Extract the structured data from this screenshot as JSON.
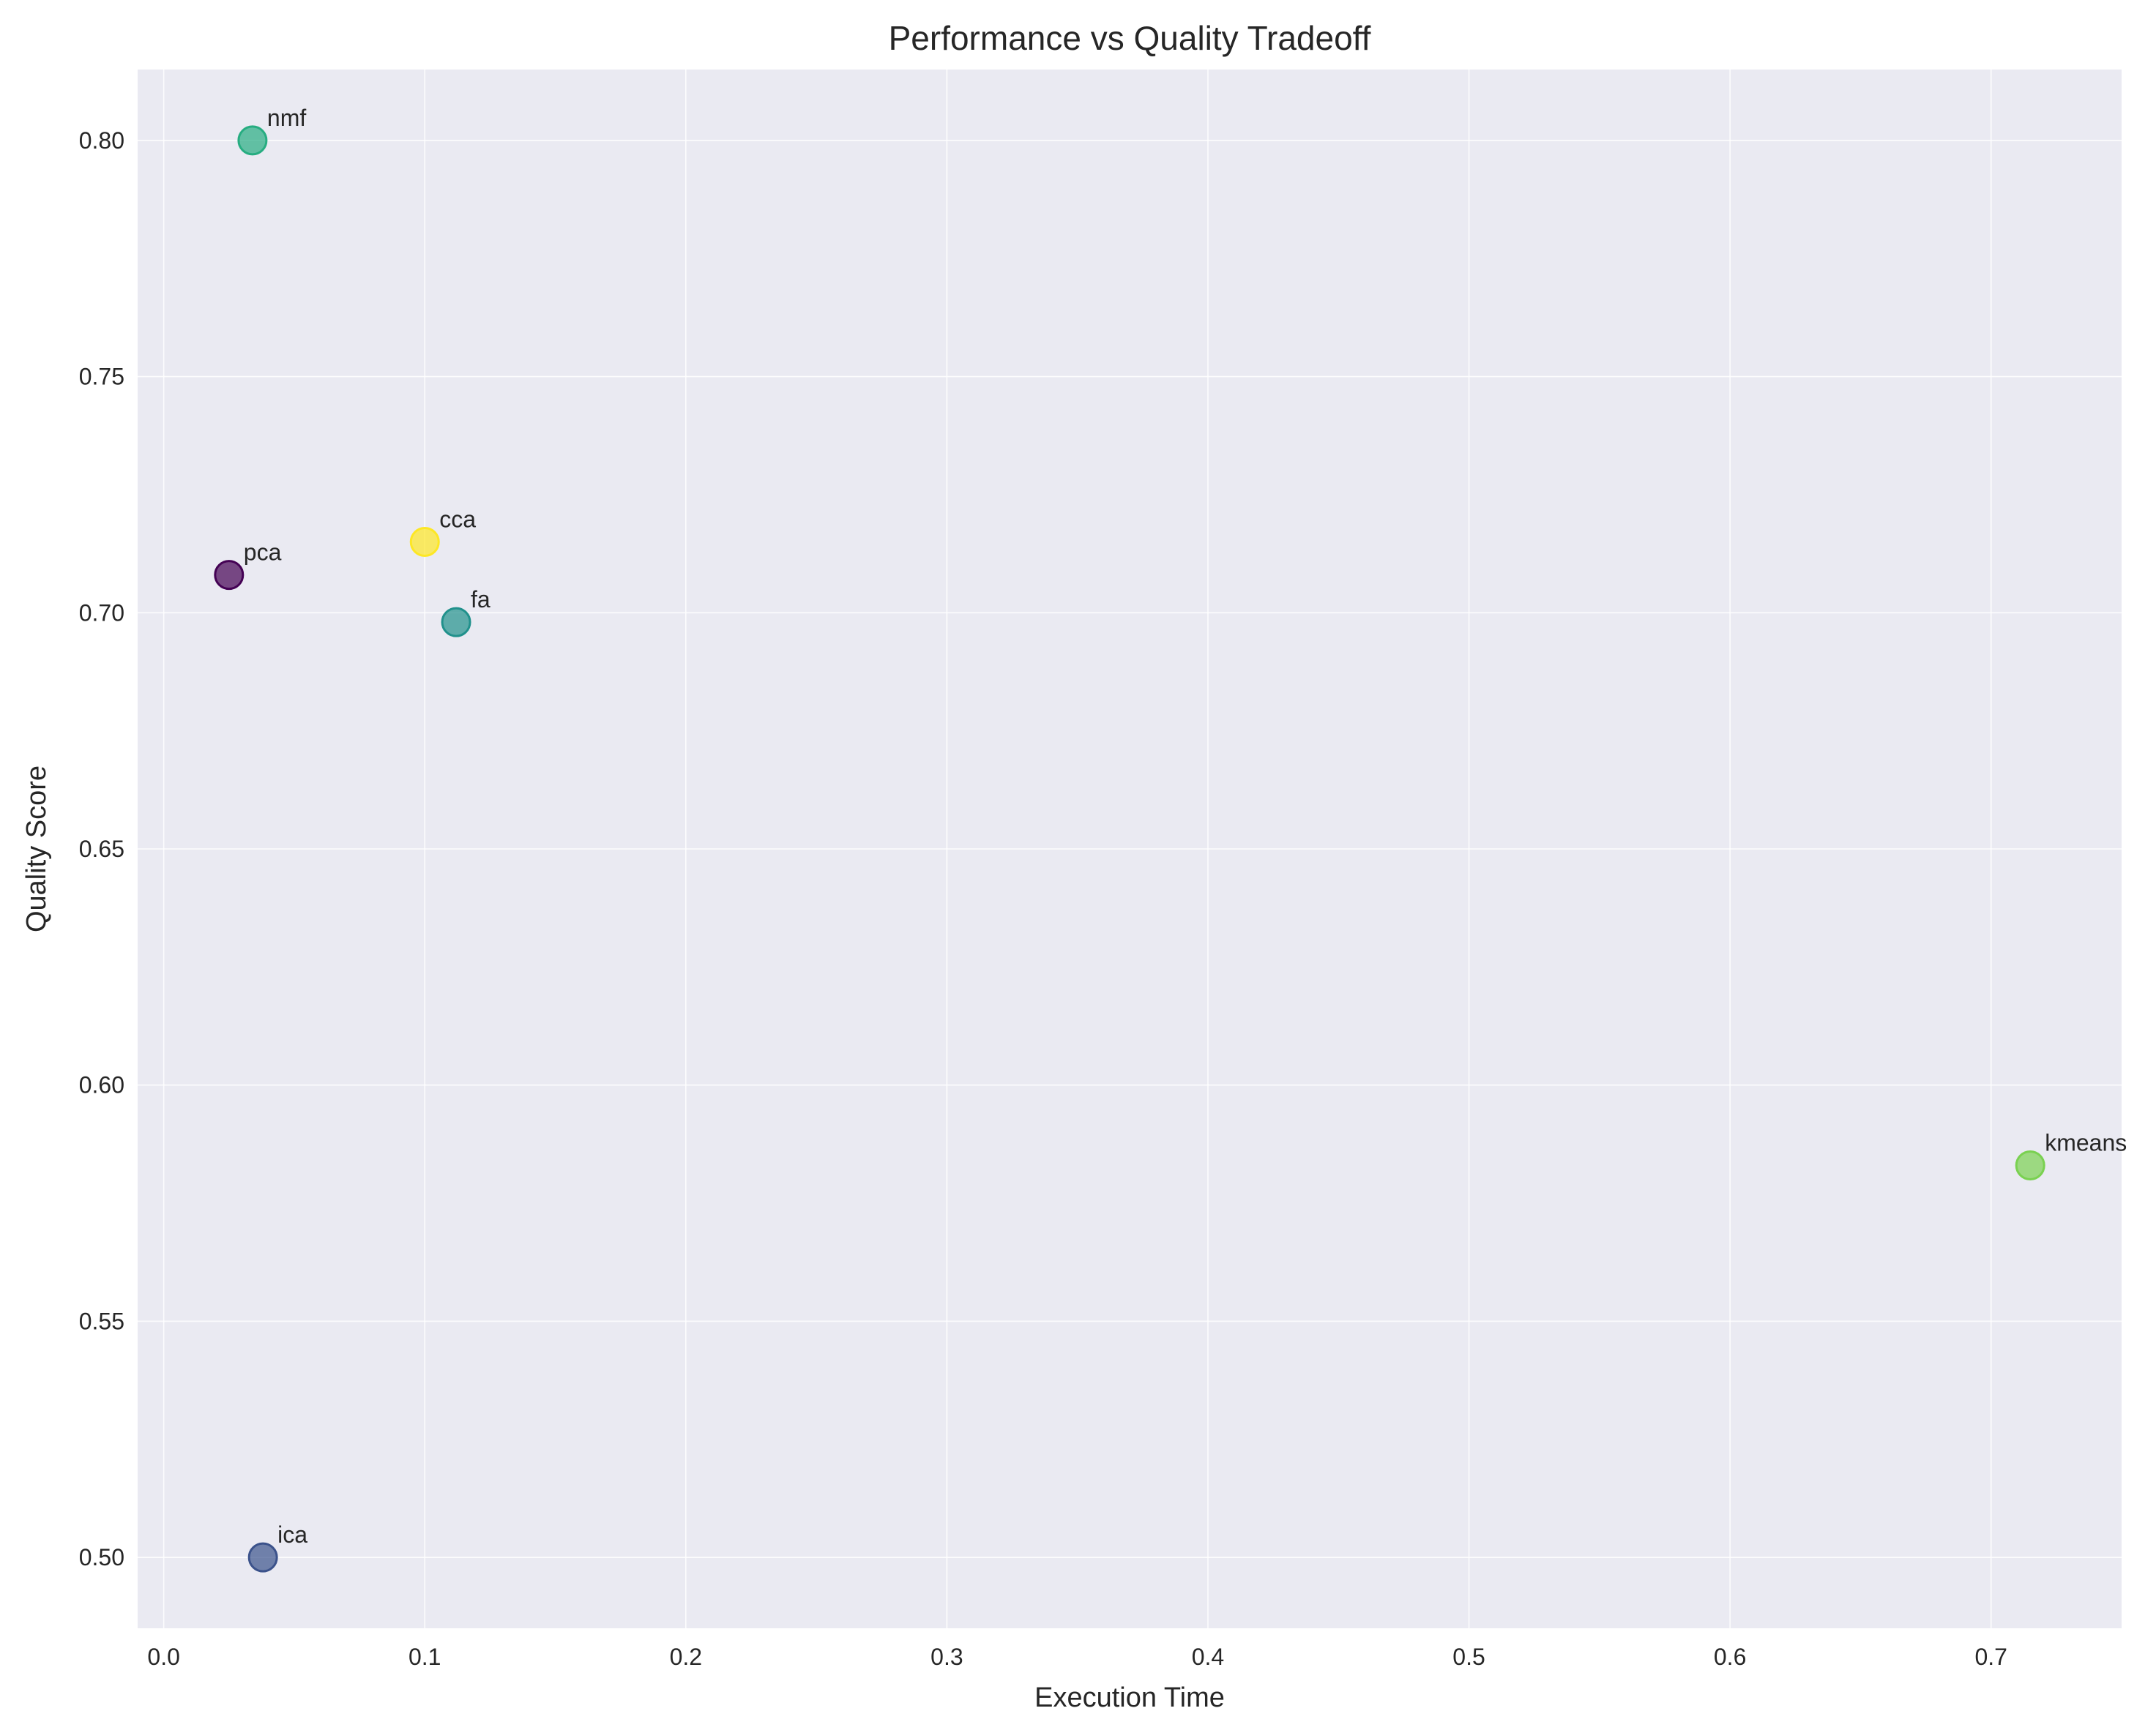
{
  "chart_data": {
    "type": "scatter",
    "title": "Performance vs Quality Tradeoff",
    "xlabel": "Execution Time",
    "ylabel": "Quality Score",
    "xlim": [
      -0.01,
      0.75
    ],
    "ylim": [
      0.485,
      0.815
    ],
    "xticks": [
      0.0,
      0.1,
      0.2,
      0.3,
      0.4,
      0.5,
      0.6,
      0.7
    ],
    "xtick_labels": [
      "0.0",
      "0.1",
      "0.2",
      "0.3",
      "0.4",
      "0.5",
      "0.6",
      "0.7"
    ],
    "yticks": [
      0.5,
      0.55,
      0.6,
      0.65,
      0.7,
      0.75,
      0.8
    ],
    "ytick_labels": [
      "0.50",
      "0.55",
      "0.60",
      "0.65",
      "0.70",
      "0.75",
      "0.80"
    ],
    "grid": true,
    "points": [
      {
        "label": "pca",
        "x": 0.025,
        "y": 0.708,
        "color": "#440154"
      },
      {
        "label": "ica",
        "x": 0.038,
        "y": 0.5,
        "color": "#3b528b"
      },
      {
        "label": "fa",
        "x": 0.112,
        "y": 0.698,
        "color": "#21918c"
      },
      {
        "label": "nmf",
        "x": 0.034,
        "y": 0.8,
        "color": "#27ad81"
      },
      {
        "label": "kmeans",
        "x": 0.715,
        "y": 0.583,
        "color": "#7ad151"
      },
      {
        "label": "cca",
        "x": 0.1,
        "y": 0.715,
        "color": "#fde725"
      }
    ],
    "colors": {
      "plot_background": "#eaeaf2",
      "grid": "#ffffff",
      "text": "#262626"
    }
  }
}
